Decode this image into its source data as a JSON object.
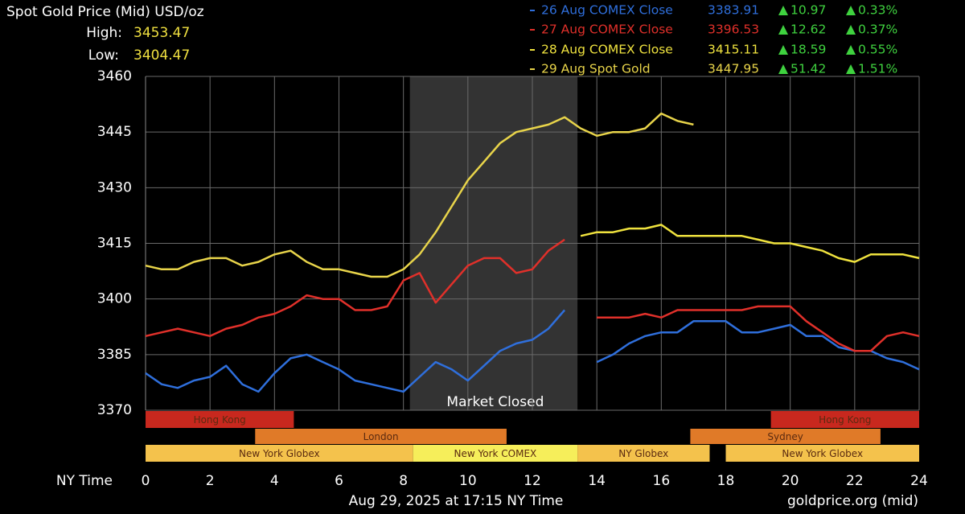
{
  "chart_data": {
    "type": "line",
    "title": "Spot Gold Price (Mid) USD/oz",
    "high": {
      "label": "High:",
      "value": 3453.47
    },
    "low": {
      "label": "Low:",
      "value": 3404.47
    },
    "x_label": "NY Time",
    "footer_left": "Aug 29, 2025 at 17:15 NY Time",
    "footer_right": "goldprice.org (mid)",
    "xlim": [
      0,
      24
    ],
    "xticks": [
      0,
      2,
      4,
      6,
      8,
      10,
      12,
      14,
      16,
      18,
      20,
      22,
      24
    ],
    "ylim": [
      3370,
      3460
    ],
    "yticks": [
      3370,
      3385,
      3400,
      3415,
      3430,
      3445,
      3460
    ],
    "grid": true,
    "shaded_region": {
      "label": "Market Closed",
      "x": [
        8.2,
        13.4
      ],
      "color": "#333333"
    },
    "sessions": [
      {
        "name": "Hong Kong",
        "row": 0,
        "x": [
          0,
          4.6
        ],
        "color": "#c8281e"
      },
      {
        "name": "Hong Kong",
        "row": 0,
        "x": [
          19.4,
          24
        ],
        "color": "#c8281e"
      },
      {
        "name": "London",
        "row": 1,
        "x": [
          3.4,
          11.2
        ],
        "color": "#e07a28"
      },
      {
        "name": "Sydney",
        "row": 1,
        "x": [
          16.9,
          22.8
        ],
        "color": "#e07a28"
      },
      {
        "name": "New York Globex",
        "row": 2,
        "x": [
          0,
          8.3
        ],
        "color": "#f4c24c"
      },
      {
        "name": "New York COMEX",
        "row": 2,
        "x": [
          8.3,
          13.4
        ],
        "color": "#f6ee5a"
      },
      {
        "name": "NY Globex",
        "row": 2,
        "x": [
          13.4,
          17.5
        ],
        "color": "#f4c24c"
      },
      {
        "name": "New York Globex",
        "row": 2,
        "x": [
          18,
          24
        ],
        "color": "#f4c24c"
      }
    ],
    "x": [
      0,
      0.5,
      1,
      1.5,
      2,
      2.5,
      3,
      3.5,
      4,
      4.5,
      5,
      5.5,
      6,
      6.5,
      7,
      7.5,
      8,
      8.5,
      9,
      9.5,
      10,
      10.5,
      11,
      11.5,
      12,
      12.5,
      13,
      13.5,
      14,
      14.5,
      15,
      15.5,
      16,
      16.5,
      17,
      17.5,
      18,
      18.5,
      19,
      19.5,
      20,
      20.5,
      21,
      21.5,
      22,
      22.5,
      23,
      23.5,
      24
    ],
    "series": [
      {
        "name": "26 Aug COMEX Close",
        "color": "#2f6fdc",
        "close": 3383.91,
        "change": 10.97,
        "change_pct": "0.33%",
        "values": [
          3380,
          3377,
          3376,
          3378,
          3379,
          3382,
          3377,
          3375,
          3380,
          3384,
          3385,
          3383,
          3381,
          3378,
          3377,
          3376,
          3375,
          3379,
          3383,
          3381,
          3378,
          3382,
          3386,
          3388,
          3389,
          3392,
          3397,
          null,
          3383,
          3385,
          3388,
          3390,
          3391,
          3391,
          3394,
          3394,
          3394,
          3391,
          3391,
          3392,
          3393,
          3390,
          3390,
          3387,
          3386,
          3386,
          3384,
          3383,
          3381
        ]
      },
      {
        "name": "27 Aug COMEX Close",
        "color": "#e0302a",
        "close": 3396.53,
        "change": 12.62,
        "change_pct": "0.37%",
        "values": [
          3390,
          3391,
          3392,
          3391,
          3390,
          3392,
          3393,
          3395,
          3396,
          3398,
          3401,
          3400,
          3400,
          3397,
          3397,
          3398,
          3405,
          3407,
          3399,
          3404,
          3409,
          3411,
          3411,
          3407,
          3408,
          3413,
          3416,
          null,
          3395,
          3395,
          3395,
          3396,
          3395,
          3397,
          3397,
          3397,
          3397,
          3397,
          3398,
          3398,
          3398,
          3394,
          3391,
          3388,
          3386,
          3386,
          3390,
          3391,
          3390
        ]
      },
      {
        "name": "28 Aug COMEX Close",
        "color": "#efe23e",
        "close": 3415.11,
        "change": 18.59,
        "change_pct": "0.55%",
        "values": [
          null,
          null,
          null,
          null,
          null,
          null,
          null,
          null,
          null,
          null,
          null,
          null,
          null,
          null,
          null,
          null,
          null,
          null,
          null,
          null,
          null,
          null,
          null,
          null,
          null,
          null,
          null,
          3417,
          3418,
          3418,
          3419,
          3419,
          3420,
          3417,
          3417,
          3417,
          3417,
          3417,
          3416,
          3415,
          3415,
          3414,
          3413,
          3411,
          3410,
          3412,
          3412,
          3412,
          3411
        ]
      },
      {
        "name": "29 Aug Spot Gold",
        "color": "#e8d44a",
        "close": 3447.95,
        "change": 51.42,
        "change_pct": "1.51%",
        "values": [
          3409,
          3408,
          3408,
          3410,
          3411,
          3411,
          3409,
          3410,
          3412,
          3413,
          3410,
          3408,
          3408,
          3407,
          3406,
          3406,
          3408,
          3412,
          3418,
          3425,
          3432,
          3437,
          3442,
          3445,
          3446,
          3447,
          3449,
          3446,
          3444,
          3445,
          3445,
          3446,
          3450,
          3448,
          3447,
          null,
          null,
          null,
          null,
          null,
          null,
          null,
          null,
          null,
          null,
          null,
          null,
          null,
          null
        ]
      }
    ],
    "change_color": "#3fd23f"
  }
}
